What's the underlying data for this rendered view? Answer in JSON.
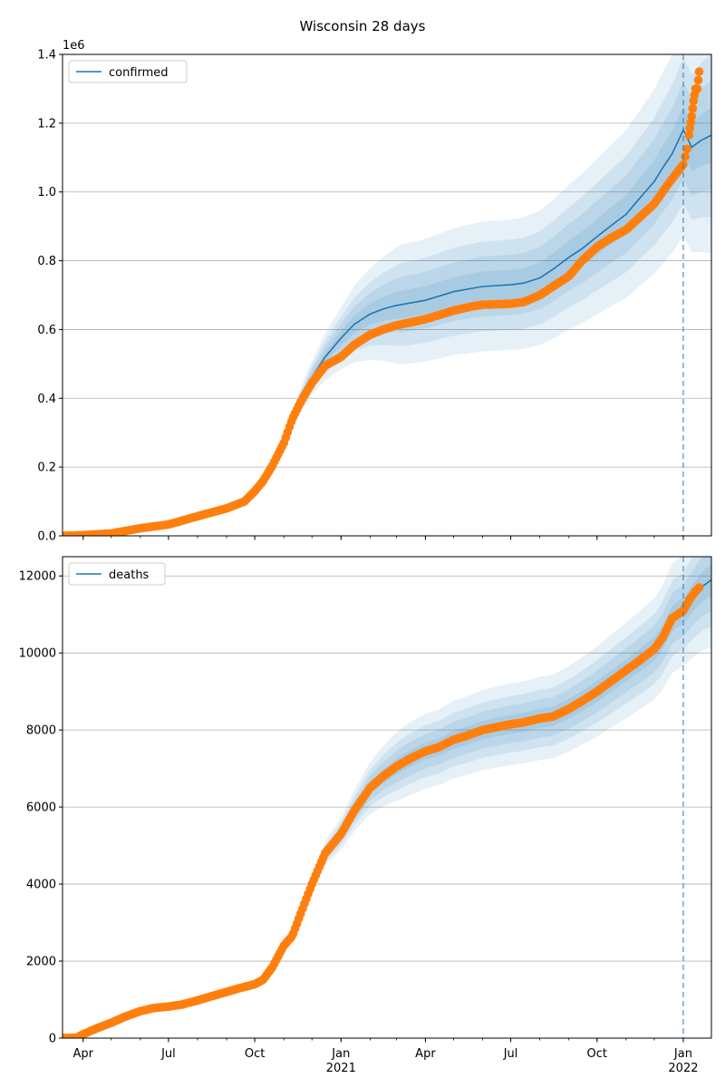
{
  "figure": {
    "title": "Wisconsin 28 days"
  },
  "colors": {
    "model": "#1f77b4",
    "observed": "#ff7f0e",
    "band": "#1f77b4",
    "grid": "#b0b0b0"
  },
  "x_ticks": [
    {
      "date": "2020-04-01",
      "label": "Apr",
      "sub": ""
    },
    {
      "date": "2020-07-01",
      "label": "Jul",
      "sub": ""
    },
    {
      "date": "2020-10-01",
      "label": "Oct",
      "sub": ""
    },
    {
      "date": "2021-01-01",
      "label": "Jan",
      "sub": "2021"
    },
    {
      "date": "2021-04-01",
      "label": "Apr",
      "sub": ""
    },
    {
      "date": "2021-07-01",
      "label": "Jul",
      "sub": ""
    },
    {
      "date": "2021-10-01",
      "label": "Oct",
      "sub": ""
    },
    {
      "date": "2022-01-01",
      "label": "Jan",
      "sub": "2022"
    }
  ],
  "chart_data": [
    {
      "type": "line",
      "title": "Wisconsin 28 days",
      "legend": "confirmed",
      "legend_position": "top-left",
      "grid": "horizontal",
      "xlim": [
        "2020-03-10",
        "2022-01-31"
      ],
      "ylim": [
        0,
        1400000
      ],
      "y_offset_label": "1e6",
      "y_ticks": [
        0,
        200000,
        400000,
        600000,
        800000,
        1000000,
        1200000,
        1400000
      ],
      "y_tick_labels": [
        "0.0",
        "0.2",
        "0.4",
        "0.6",
        "0.8",
        "1.0",
        "1.2",
        "1.4"
      ],
      "forecast_start": "2022-01-01",
      "observed": {
        "x": [
          "2020-03-10",
          "2020-04-01",
          "2020-05-01",
          "2020-06-01",
          "2020-07-01",
          "2020-08-01",
          "2020-09-01",
          "2020-09-20",
          "2020-10-01",
          "2020-10-10",
          "2020-10-20",
          "2020-11-01",
          "2020-11-10",
          "2020-11-20",
          "2020-12-01",
          "2020-12-15",
          "2021-01-01",
          "2021-01-15",
          "2021-02-01",
          "2021-02-15",
          "2021-03-01",
          "2021-04-01",
          "2021-05-01",
          "2021-05-20",
          "2021-06-01",
          "2021-07-01",
          "2021-07-15",
          "2021-08-01",
          "2021-08-15",
          "2021-09-01",
          "2021-09-15",
          "2021-10-01",
          "2021-10-15",
          "2021-11-01",
          "2021-11-15",
          "2021-12-01",
          "2021-12-15",
          "2022-01-01",
          "2022-01-05",
          "2022-01-08",
          "2022-01-10",
          "2022-01-12",
          "2022-01-14",
          "2022-01-16",
          "2022-01-18"
        ],
        "y": [
          0,
          2000,
          7000,
          22000,
          33000,
          57000,
          80000,
          100000,
          130000,
          160000,
          205000,
          270000,
          340000,
          395000,
          445000,
          495000,
          520000,
          555000,
          585000,
          600000,
          612000,
          630000,
          655000,
          667000,
          672000,
          675000,
          680000,
          700000,
          725000,
          755000,
          800000,
          840000,
          865000,
          890000,
          925000,
          965000,
          1020000,
          1080000,
          1125000,
          1185000,
          1220000,
          1265000,
          1300000,
          1300000,
          1350000
        ]
      },
      "series": [
        {
          "name": "confirmed",
          "x": [
            "2020-09-25",
            "2020-10-01",
            "2020-10-10",
            "2020-10-20",
            "2020-11-01",
            "2020-11-10",
            "2020-11-20",
            "2020-12-01",
            "2020-12-15",
            "2021-01-01",
            "2021-01-15",
            "2021-02-01",
            "2021-02-15",
            "2021-03-01",
            "2021-04-01",
            "2021-05-01",
            "2021-06-01",
            "2021-07-01",
            "2021-07-15",
            "2021-08-01",
            "2021-08-15",
            "2021-09-01",
            "2021-09-15",
            "2021-10-01",
            "2021-10-15",
            "2021-11-01",
            "2021-11-15",
            "2021-12-01",
            "2021-12-10",
            "2021-12-20",
            "2022-01-01",
            "2022-01-10",
            "2022-01-20",
            "2022-01-31"
          ],
          "y": [
            110000,
            130000,
            160000,
            205000,
            270000,
            340000,
            400000,
            460000,
            520000,
            575000,
            615000,
            645000,
            660000,
            670000,
            685000,
            710000,
            725000,
            730000,
            735000,
            750000,
            775000,
            810000,
            835000,
            870000,
            900000,
            935000,
            980000,
            1030000,
            1070000,
            1110000,
            1180000,
            1130000,
            1150000,
            1165000
          ]
        }
      ],
      "bands_relative_halfwidth": [
        0.06,
        0.12,
        0.18,
        0.26
      ]
    },
    {
      "type": "line",
      "legend": "deaths",
      "legend_position": "top-left",
      "grid": "horizontal",
      "xlim": [
        "2020-03-10",
        "2022-01-31"
      ],
      "ylim": [
        0,
        12500
      ],
      "y_ticks": [
        0,
        2000,
        4000,
        6000,
        8000,
        10000,
        12000
      ],
      "y_tick_labels": [
        "0",
        "2000",
        "4000",
        "6000",
        "8000",
        "10000",
        "12000"
      ],
      "forecast_start": "2022-01-01",
      "observed": {
        "x": [
          "2020-03-10",
          "2020-03-25",
          "2020-04-01",
          "2020-04-15",
          "2020-05-01",
          "2020-05-15",
          "2020-06-01",
          "2020-06-15",
          "2020-07-01",
          "2020-07-15",
          "2020-08-01",
          "2020-08-15",
          "2020-09-01",
          "2020-09-15",
          "2020-10-01",
          "2020-10-10",
          "2020-10-20",
          "2020-11-01",
          "2020-11-10",
          "2020-11-20",
          "2020-12-01",
          "2020-12-15",
          "2021-01-01",
          "2021-01-15",
          "2021-02-01",
          "2021-02-15",
          "2021-03-01",
          "2021-03-15",
          "2021-04-01",
          "2021-04-15",
          "2021-05-01",
          "2021-05-15",
          "2021-06-01",
          "2021-07-01",
          "2021-07-15",
          "2021-08-01",
          "2021-08-15",
          "2021-09-01",
          "2021-09-15",
          "2021-10-01",
          "2021-10-15",
          "2021-11-01",
          "2021-11-15",
          "2021-12-01",
          "2021-12-10",
          "2021-12-20",
          "2022-01-01",
          "2022-01-08",
          "2022-01-14",
          "2022-01-18"
        ],
        "y": [
          0,
          10,
          100,
          250,
          400,
          550,
          700,
          780,
          820,
          870,
          980,
          1080,
          1200,
          1300,
          1400,
          1520,
          1850,
          2400,
          2650,
          3300,
          4000,
          4800,
          5300,
          5900,
          6500,
          6800,
          7050,
          7250,
          7450,
          7550,
          7750,
          7850,
          8000,
          8150,
          8200,
          8300,
          8350,
          8550,
          8750,
          9000,
          9250,
          9550,
          9800,
          10100,
          10400,
          10900,
          11100,
          11400,
          11600,
          11700
        ]
      },
      "series": [
        {
          "name": "deaths",
          "x": [
            "2020-09-25",
            "2020-10-01",
            "2020-10-10",
            "2020-10-20",
            "2020-11-01",
            "2020-11-10",
            "2020-11-20",
            "2020-12-01",
            "2020-12-15",
            "2021-01-01",
            "2021-01-15",
            "2021-02-01",
            "2021-02-15",
            "2021-03-01",
            "2021-03-15",
            "2021-04-01",
            "2021-04-15",
            "2021-05-01",
            "2021-05-15",
            "2021-06-01",
            "2021-07-01",
            "2021-07-15",
            "2021-08-01",
            "2021-08-15",
            "2021-09-01",
            "2021-09-15",
            "2021-10-01",
            "2021-10-15",
            "2021-11-01",
            "2021-11-15",
            "2021-12-01",
            "2021-12-10",
            "2021-12-20",
            "2022-01-01",
            "2022-01-10",
            "2022-01-20",
            "2022-01-31"
          ],
          "y": [
            1350,
            1400,
            1520,
            1850,
            2400,
            2650,
            3300,
            4000,
            4800,
            5300,
            5900,
            6500,
            6800,
            7050,
            7250,
            7450,
            7550,
            7750,
            7850,
            8000,
            8150,
            8200,
            8300,
            8350,
            8550,
            8750,
            9000,
            9250,
            9550,
            9800,
            10100,
            10400,
            10900,
            11100,
            11400,
            11700,
            11900
          ]
        }
      ],
      "bands_relative_halfwidth": [
        0.03,
        0.06,
        0.09,
        0.13
      ]
    }
  ]
}
